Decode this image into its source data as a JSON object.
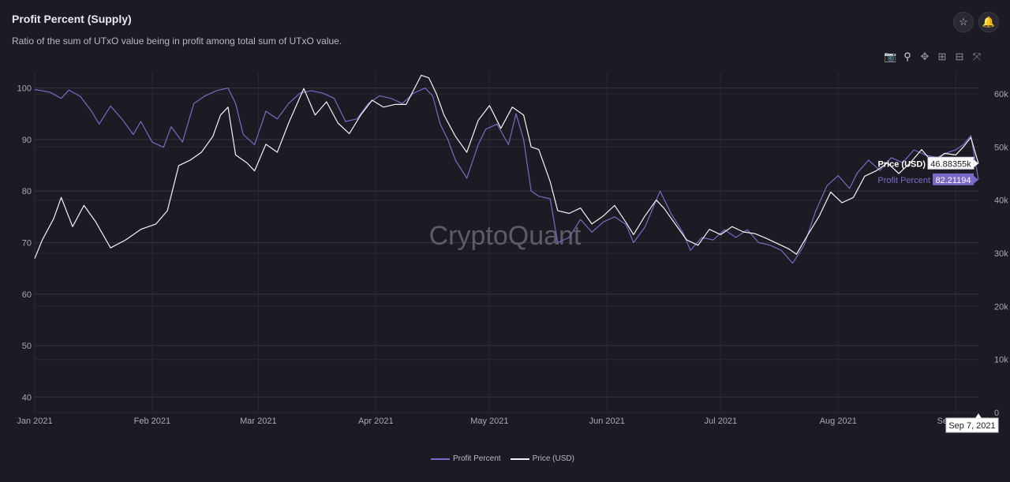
{
  "header": {
    "title": "Profit Percent (Supply)",
    "subtitle": "Ratio of the sum of UTxO value being in profit among total sum of UTxO value."
  },
  "actions": {
    "favorite_icon": "star-icon",
    "alert_icon": "bell-icon"
  },
  "modebar": [
    "camera-icon",
    "zoom-icon",
    "pan-icon",
    "zoom-in-icon",
    "zoom-out-icon",
    "autoscale-icon"
  ],
  "watermark": "CryptoQuant",
  "colors": {
    "profit": "#7b68c8",
    "price": "#f4f4f8",
    "grid": "#34333d",
    "background": "#1c1b23"
  },
  "tooltip": {
    "price_label": "Price (USD)",
    "price_value": "46.88355k",
    "profit_label": "Profit Percent",
    "profit_value": "82.21194",
    "date_label": "Sep 7, 2021"
  },
  "chart_data": {
    "type": "line",
    "x_range": [
      "2021-01-01",
      "2021-09-07"
    ],
    "x_ticks": [
      "Jan 2021",
      "Feb 2021",
      "Mar 2021",
      "Apr 2021",
      "May 2021",
      "Jun 2021",
      "Jul 2021",
      "Aug 2021",
      "Sep 2021"
    ],
    "y_left_ticks": [
      "40",
      "50",
      "60",
      "70",
      "80",
      "90",
      "100"
    ],
    "y_left_range": [
      37,
      103
    ],
    "y_right_ticks": [
      "0",
      "10k",
      "20k",
      "30k",
      "40k",
      "50k",
      "60k"
    ],
    "y_right_range": [
      0,
      64000
    ],
    "legend": [
      "Profit Percent",
      "Price (USD)"
    ],
    "series": [
      {
        "name": "Profit Percent",
        "axis": "left",
        "points": [
          [
            "2021-01-01",
            99.7
          ],
          [
            "2021-01-05",
            99.2
          ],
          [
            "2021-01-08",
            98.0
          ],
          [
            "2021-01-10",
            99.6
          ],
          [
            "2021-01-13",
            98.4
          ],
          [
            "2021-01-16",
            95.5
          ],
          [
            "2021-01-18",
            93.0
          ],
          [
            "2021-01-21",
            96.5
          ],
          [
            "2021-01-24",
            94.0
          ],
          [
            "2021-01-27",
            91.0
          ],
          [
            "2021-01-29",
            93.5
          ],
          [
            "2021-02-01",
            89.5
          ],
          [
            "2021-02-04",
            88.5
          ],
          [
            "2021-02-06",
            92.5
          ],
          [
            "2021-02-09",
            89.5
          ],
          [
            "2021-02-12",
            97.0
          ],
          [
            "2021-02-15",
            98.5
          ],
          [
            "2021-02-18",
            99.5
          ],
          [
            "2021-02-21",
            100.0
          ],
          [
            "2021-02-23",
            97.0
          ],
          [
            "2021-02-25",
            91.0
          ],
          [
            "2021-02-28",
            89.0
          ],
          [
            "2021-03-03",
            95.5
          ],
          [
            "2021-03-06",
            94.0
          ],
          [
            "2021-03-09",
            97.0
          ],
          [
            "2021-03-12",
            99.0
          ],
          [
            "2021-03-15",
            99.5
          ],
          [
            "2021-03-18",
            99.0
          ],
          [
            "2021-03-21",
            98.0
          ],
          [
            "2021-03-24",
            93.5
          ],
          [
            "2021-03-27",
            94.0
          ],
          [
            "2021-03-30",
            97.0
          ],
          [
            "2021-04-02",
            98.5
          ],
          [
            "2021-04-05",
            98.0
          ],
          [
            "2021-04-08",
            97.0
          ],
          [
            "2021-04-11",
            99.0
          ],
          [
            "2021-04-14",
            100.0
          ],
          [
            "2021-04-16",
            98.5
          ],
          [
            "2021-04-18",
            93.0
          ],
          [
            "2021-04-20",
            90.0
          ],
          [
            "2021-04-22",
            86.0
          ],
          [
            "2021-04-25",
            82.5
          ],
          [
            "2021-04-28",
            89.0
          ],
          [
            "2021-04-30",
            92.0
          ],
          [
            "2021-05-03",
            93.0
          ],
          [
            "2021-05-06",
            89.0
          ],
          [
            "2021-05-08",
            95.0
          ],
          [
            "2021-05-10",
            90.0
          ],
          [
            "2021-05-12",
            80.0
          ],
          [
            "2021-05-14",
            79.0
          ],
          [
            "2021-05-17",
            78.5
          ],
          [
            "2021-05-19",
            70.0
          ],
          [
            "2021-05-22",
            71.0
          ],
          [
            "2021-05-25",
            74.5
          ],
          [
            "2021-05-28",
            72.0
          ],
          [
            "2021-05-31",
            74.0
          ],
          [
            "2021-06-03",
            75.0
          ],
          [
            "2021-06-06",
            73.5
          ],
          [
            "2021-06-08",
            70.0
          ],
          [
            "2021-06-11",
            73.0
          ],
          [
            "2021-06-13",
            76.5
          ],
          [
            "2021-06-15",
            80.0
          ],
          [
            "2021-06-18",
            75.5
          ],
          [
            "2021-06-21",
            72.0
          ],
          [
            "2021-06-23",
            68.5
          ],
          [
            "2021-06-26",
            71.0
          ],
          [
            "2021-06-29",
            70.5
          ],
          [
            "2021-07-02",
            72.5
          ],
          [
            "2021-07-05",
            71.0
          ],
          [
            "2021-07-08",
            72.5
          ],
          [
            "2021-07-11",
            70.0
          ],
          [
            "2021-07-14",
            69.5
          ],
          [
            "2021-07-17",
            68.5
          ],
          [
            "2021-07-20",
            66.0
          ],
          [
            "2021-07-23",
            69.5
          ],
          [
            "2021-07-26",
            76.0
          ],
          [
            "2021-07-29",
            81.0
          ],
          [
            "2021-08-01",
            83.0
          ],
          [
            "2021-08-04",
            80.5
          ],
          [
            "2021-08-06",
            83.5
          ],
          [
            "2021-08-09",
            86.0
          ],
          [
            "2021-08-12",
            84.0
          ],
          [
            "2021-08-15",
            86.5
          ],
          [
            "2021-08-18",
            85.5
          ],
          [
            "2021-08-21",
            88.0
          ],
          [
            "2021-08-24",
            87.0
          ],
          [
            "2021-08-27",
            86.5
          ],
          [
            "2021-08-30",
            87.5
          ],
          [
            "2021-09-01",
            88.0
          ],
          [
            "2021-09-03",
            89.0
          ],
          [
            "2021-09-05",
            90.8
          ],
          [
            "2021-09-07",
            82.2
          ]
        ]
      },
      {
        "name": "Price (USD)",
        "axis": "right",
        "points": [
          [
            "2021-01-01",
            29000
          ],
          [
            "2021-01-03",
            32500
          ],
          [
            "2021-01-06",
            36500
          ],
          [
            "2021-01-08",
            40500
          ],
          [
            "2021-01-11",
            35000
          ],
          [
            "2021-01-14",
            39000
          ],
          [
            "2021-01-17",
            36000
          ],
          [
            "2021-01-21",
            31000
          ],
          [
            "2021-01-25",
            32500
          ],
          [
            "2021-01-29",
            34500
          ],
          [
            "2021-02-02",
            35500
          ],
          [
            "2021-02-05",
            38000
          ],
          [
            "2021-02-08",
            46500
          ],
          [
            "2021-02-11",
            47500
          ],
          [
            "2021-02-14",
            49000
          ],
          [
            "2021-02-17",
            52000
          ],
          [
            "2021-02-19",
            56000
          ],
          [
            "2021-02-21",
            57500
          ],
          [
            "2021-02-23",
            48500
          ],
          [
            "2021-02-26",
            47000
          ],
          [
            "2021-02-28",
            45500
          ],
          [
            "2021-03-03",
            50500
          ],
          [
            "2021-03-06",
            49000
          ],
          [
            "2021-03-09",
            54500
          ],
          [
            "2021-03-13",
            61000
          ],
          [
            "2021-03-16",
            56000
          ],
          [
            "2021-03-19",
            58500
          ],
          [
            "2021-03-22",
            54500
          ],
          [
            "2021-03-25",
            52500
          ],
          [
            "2021-03-28",
            56000
          ],
          [
            "2021-03-31",
            58800
          ],
          [
            "2021-04-03",
            57500
          ],
          [
            "2021-04-06",
            58000
          ],
          [
            "2021-04-09",
            58000
          ],
          [
            "2021-04-13",
            63500
          ],
          [
            "2021-04-15",
            63000
          ],
          [
            "2021-04-17",
            60000
          ],
          [
            "2021-04-19",
            56000
          ],
          [
            "2021-04-22",
            52000
          ],
          [
            "2021-04-25",
            49000
          ],
          [
            "2021-04-28",
            55000
          ],
          [
            "2021-05-01",
            57800
          ],
          [
            "2021-05-04",
            53500
          ],
          [
            "2021-05-07",
            57500
          ],
          [
            "2021-05-10",
            56000
          ],
          [
            "2021-05-12",
            50000
          ],
          [
            "2021-05-14",
            49500
          ],
          [
            "2021-05-17",
            43500
          ],
          [
            "2021-05-19",
            38000
          ],
          [
            "2021-05-22",
            37500
          ],
          [
            "2021-05-25",
            38500
          ],
          [
            "2021-05-28",
            35500
          ],
          [
            "2021-05-31",
            37000
          ],
          [
            "2021-06-03",
            39000
          ],
          [
            "2021-06-06",
            35800
          ],
          [
            "2021-06-08",
            33500
          ],
          [
            "2021-06-11",
            37000
          ],
          [
            "2021-06-14",
            40000
          ],
          [
            "2021-06-16",
            38500
          ],
          [
            "2021-06-19",
            35500
          ],
          [
            "2021-06-22",
            32500
          ],
          [
            "2021-06-25",
            31500
          ],
          [
            "2021-06-28",
            34500
          ],
          [
            "2021-07-01",
            33500
          ],
          [
            "2021-07-04",
            35000
          ],
          [
            "2021-07-07",
            34000
          ],
          [
            "2021-07-10",
            33700
          ],
          [
            "2021-07-13",
            32800
          ],
          [
            "2021-07-16",
            31800
          ],
          [
            "2021-07-19",
            30800
          ],
          [
            "2021-07-21",
            29800
          ],
          [
            "2021-07-24",
            33500
          ],
          [
            "2021-07-27",
            37000
          ],
          [
            "2021-07-30",
            41500
          ],
          [
            "2021-08-02",
            39500
          ],
          [
            "2021-08-05",
            40500
          ],
          [
            "2021-08-08",
            44500
          ],
          [
            "2021-08-11",
            45500
          ],
          [
            "2021-08-14",
            47000
          ],
          [
            "2021-08-17",
            45000
          ],
          [
            "2021-08-20",
            47000
          ],
          [
            "2021-08-23",
            49500
          ],
          [
            "2021-08-26",
            47000
          ],
          [
            "2021-08-29",
            48800
          ],
          [
            "2021-09-01",
            48500
          ],
          [
            "2021-09-03",
            50000
          ],
          [
            "2021-09-05",
            51800
          ],
          [
            "2021-09-07",
            46884
          ]
        ]
      }
    ]
  }
}
